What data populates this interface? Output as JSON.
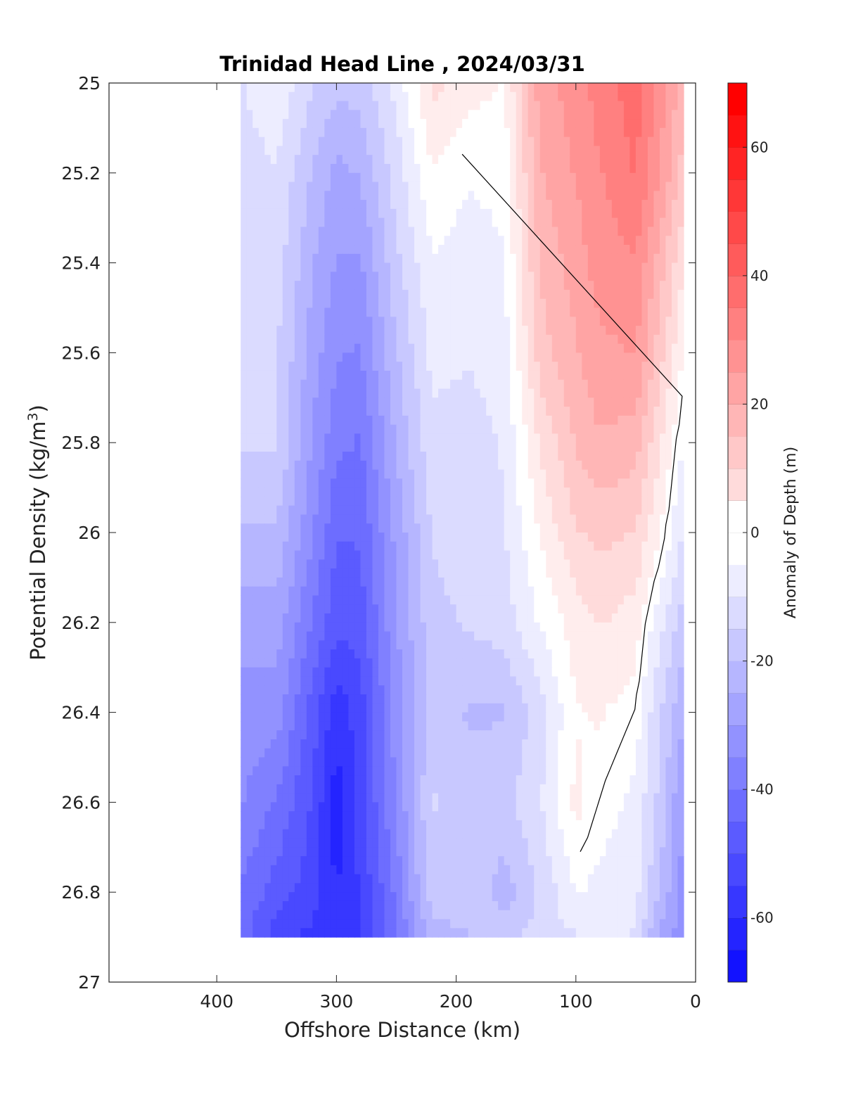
{
  "chart_data": {
    "type": "heatmap",
    "subtype": "filled-contour",
    "title": "Trinidad Head Line , 2024/03/31",
    "xlabel": "Offshore Distance (km)",
    "ylabel_main": "Potential Density (kg/m",
    "ylabel_sup": "3",
    "ylabel_close": ")",
    "xlim": [
      490,
      0
    ],
    "x_reversed": true,
    "ylim": [
      25,
      27
    ],
    "y_reversed": true,
    "x_ticks": [
      "400",
      "300",
      "200",
      "100",
      "0"
    ],
    "x_tick_values": [
      400,
      300,
      200,
      100,
      0
    ],
    "y_ticks": [
      "25",
      "25.2",
      "25.4",
      "25.6",
      "25.8",
      "26",
      "26.2",
      "26.4",
      "26.6",
      "26.8",
      "27"
    ],
    "y_tick_values": [
      25,
      25.2,
      25.4,
      25.6,
      25.8,
      26,
      26.2,
      26.4,
      26.6,
      26.8,
      27
    ],
    "colorbar": {
      "label": "Anomaly of Depth (m)",
      "range": [
        -70,
        70
      ],
      "level_step": 5,
      "ticks": [
        "60",
        "40",
        "20",
        "0",
        "-20",
        "-40",
        "-60"
      ],
      "tick_values": [
        60,
        40,
        20,
        0,
        -20,
        -40,
        -60
      ],
      "colors": {
        "negative": "#0000ff",
        "neutral": "#ffffff",
        "positive": "#ff0000"
      }
    },
    "data_extent": {
      "x": [
        10,
        380
      ],
      "y": [
        25,
        26.9
      ]
    },
    "zero_contour_color": "#000000",
    "x": [
      380,
      350,
      320,
      300,
      280,
      250,
      220,
      190,
      160,
      130,
      100,
      80,
      50,
      30,
      10
    ],
    "y": [
      25.0,
      25.2,
      25.4,
      25.6,
      25.8,
      26.0,
      26.2,
      26.4,
      26.6,
      26.8,
      26.9
    ],
    "z": [
      [
        -8,
        -3,
        -12,
        -16,
        -15,
        -6,
        9,
        5,
        2,
        25,
        30,
        35,
        40,
        30,
        20
      ],
      [
        -10,
        -8,
        -18,
        -24,
        -22,
        -10,
        2,
        -2,
        -1,
        22,
        28,
        32,
        38,
        28,
        15
      ],
      [
        -10,
        -10,
        -22,
        -28,
        -28,
        -14,
        -3,
        -5,
        -3,
        18,
        25,
        30,
        32,
        20,
        8
      ],
      [
        -12,
        -12,
        -25,
        -32,
        -33,
        -18,
        -6,
        -7,
        -5,
        15,
        22,
        26,
        28,
        15,
        2
      ],
      [
        -12,
        -12,
        -28,
        -36,
        -38,
        -22,
        -9,
        -10,
        -7,
        8,
        18,
        22,
        20,
        8,
        -3
      ],
      [
        -18,
        -18,
        -32,
        -42,
        -42,
        -26,
        -12,
        -10,
        -8,
        3,
        12,
        14,
        12,
        3,
        -8
      ],
      [
        -25,
        -25,
        -38,
        -46,
        -45,
        -28,
        -14,
        -12,
        -10,
        -2,
        5,
        8,
        5,
        -6,
        -15
      ],
      [
        -30,
        -30,
        -45,
        -56,
        -50,
        -30,
        -15,
        -18,
        -18,
        -10,
        2,
        3,
        0,
        -12,
        -22
      ],
      [
        -32,
        -38,
        -48,
        -60,
        -50,
        -32,
        -12,
        -16,
        -14,
        -8,
        4,
        0,
        -4,
        -14,
        -28
      ],
      [
        -38,
        -45,
        -50,
        -58,
        -52,
        -36,
        -14,
        -14,
        -20,
        -12,
        -2,
        -4,
        -6,
        -18,
        -30
      ],
      [
        -40,
        -50,
        -54,
        -56,
        -52,
        -38,
        -20,
        -18,
        -14,
        -10,
        -8,
        -6,
        -8,
        -24,
        -30
      ]
    ]
  }
}
